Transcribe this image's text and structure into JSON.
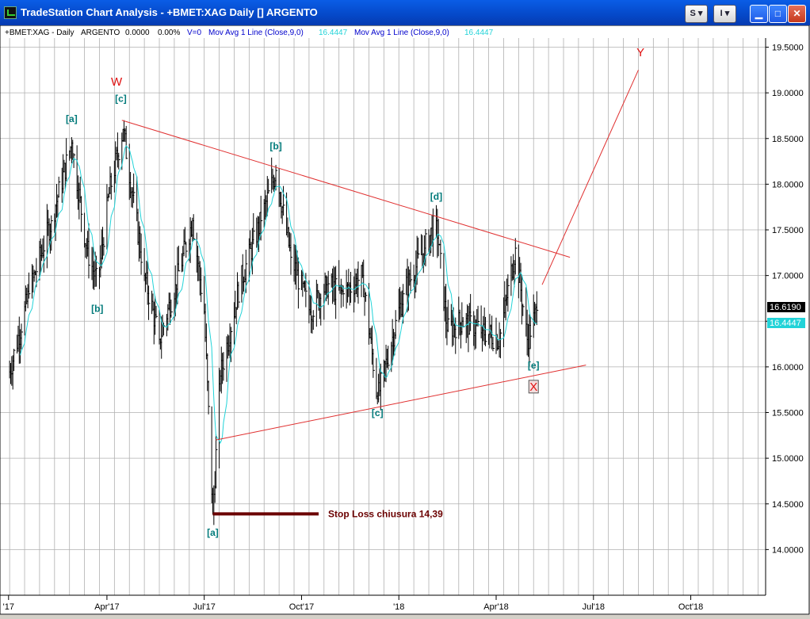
{
  "window": {
    "title": "TradeStation Chart Analysis - +BMET:XAG Daily [] ARGENTO",
    "btn_s": "S ▾",
    "btn_i": "I ▾",
    "minimize_glyph": "▁",
    "maximize_glyph": "□",
    "close_glyph": "✕"
  },
  "colors": {
    "price_bars": "#000000",
    "moving_average": "#22d3d8",
    "trendlines": "#e03030",
    "wave_labels": "#007a7a",
    "major_labels": "#e01010",
    "stop_loss": "#6b0000",
    "grid": "#b0b0b0"
  },
  "chart_data": {
    "type": "ohlc-bar",
    "header": {
      "symbol": "+BMET:XAG - Daily",
      "name": "ARGENTO",
      "change": "0.0000",
      "change_pct": "0.00%",
      "volume": "V=0",
      "indicator1": "Mov Avg 1 Line (Close,9,0)",
      "indicator1_value": "16.4447",
      "indicator2": "Mov Avg 1 Line (Close,9,0)",
      "indicator2_value": "16.4447"
    },
    "y_axis": {
      "min": 13.5,
      "max": 19.6,
      "ticks": [
        "14.0000",
        "14.5000",
        "15.0000",
        "15.5000",
        "16.0000",
        "16.5000",
        "17.0000",
        "17.5000",
        "18.0000",
        "18.5000",
        "19.0000",
        "19.5000"
      ],
      "last_price": "16.6190",
      "ma_value": "16.4447"
    },
    "x_axis": {
      "ticks": [
        "'17",
        "Apr'17",
        "Jul'17",
        "Oct'17",
        "'18",
        "Apr'18",
        "Jul'18",
        "Oct'18"
      ]
    },
    "price_path": [
      [
        "2017-01-01",
        15.9
      ],
      [
        "2017-01-20",
        16.8
      ],
      [
        "2017-02-10",
        17.6
      ],
      [
        "2017-03-01",
        18.45
      ],
      [
        "2017-03-15",
        17.3
      ],
      [
        "2017-03-25",
        16.9
      ],
      [
        "2017-04-05",
        17.9
      ],
      [
        "2017-04-18",
        18.6
      ],
      [
        "2017-05-08",
        17.0
      ],
      [
        "2017-05-22",
        16.3
      ],
      [
        "2017-06-06",
        16.9
      ],
      [
        "2017-06-22",
        17.6
      ],
      [
        "2017-07-03",
        16.6
      ],
      [
        "2017-07-11",
        14.39
      ],
      [
        "2017-07-18",
        15.9
      ],
      [
        "2017-08-05",
        16.9
      ],
      [
        "2017-08-25",
        17.6
      ],
      [
        "2017-09-08",
        18.15
      ],
      [
        "2017-09-22",
        17.2
      ],
      [
        "2017-10-10",
        16.6
      ],
      [
        "2017-10-25",
        16.9
      ],
      [
        "2017-11-10",
        16.8
      ],
      [
        "2017-11-28",
        17.0
      ],
      [
        "2017-12-12",
        15.65
      ],
      [
        "2018-01-05",
        16.8
      ],
      [
        "2018-01-25",
        17.3
      ],
      [
        "2018-02-05",
        17.6
      ],
      [
        "2018-02-15",
        16.4
      ],
      [
        "2018-03-01",
        16.5
      ],
      [
        "2018-03-20",
        16.4
      ],
      [
        "2018-04-05",
        16.3
      ],
      [
        "2018-04-20",
        17.3
      ],
      [
        "2018-05-01",
        16.3
      ],
      [
        "2018-05-10",
        16.62
      ]
    ],
    "trendlines": [
      {
        "from": [
          "2017-04-17",
          18.7
        ],
        "to": [
          "2018-06-10",
          17.2
        ]
      },
      {
        "from": [
          "2017-07-14",
          15.2
        ],
        "to": [
          "2018-06-25",
          16.02
        ]
      },
      {
        "from": [
          "2018-05-15",
          16.9
        ],
        "to": [
          "2018-08-13",
          19.25
        ]
      }
    ],
    "wave_labels": [
      {
        "text": "[a]",
        "x": "2017-03-01",
        "y": 18.68
      },
      {
        "text": "[b]",
        "x": "2017-03-25",
        "y": 16.6
      },
      {
        "text": "[c]",
        "x": "2017-04-16",
        "y": 18.9
      },
      {
        "text": "[a]",
        "x": "2017-07-11",
        "y": 14.15
      },
      {
        "text": "[b]",
        "x": "2017-09-08",
        "y": 18.38
      },
      {
        "text": "[c]",
        "x": "2017-12-12",
        "y": 15.46
      },
      {
        "text": "[d]",
        "x": "2018-02-05",
        "y": 17.83
      },
      {
        "text": "[e]",
        "x": "2018-05-07",
        "y": 15.98
      }
    ],
    "major_labels": [
      {
        "text": "W",
        "x": "2017-04-12",
        "y": 19.08
      },
      {
        "text": "X",
        "x": "2018-05-07",
        "y": 15.74
      },
      {
        "text": "Y",
        "x": "2018-08-15",
        "y": 19.4
      }
    ],
    "stop_loss": {
      "level": 14.39,
      "label": "Stop Loss chiusura 14,39",
      "from": "2017-07-11",
      "to": "2017-10-18"
    }
  }
}
